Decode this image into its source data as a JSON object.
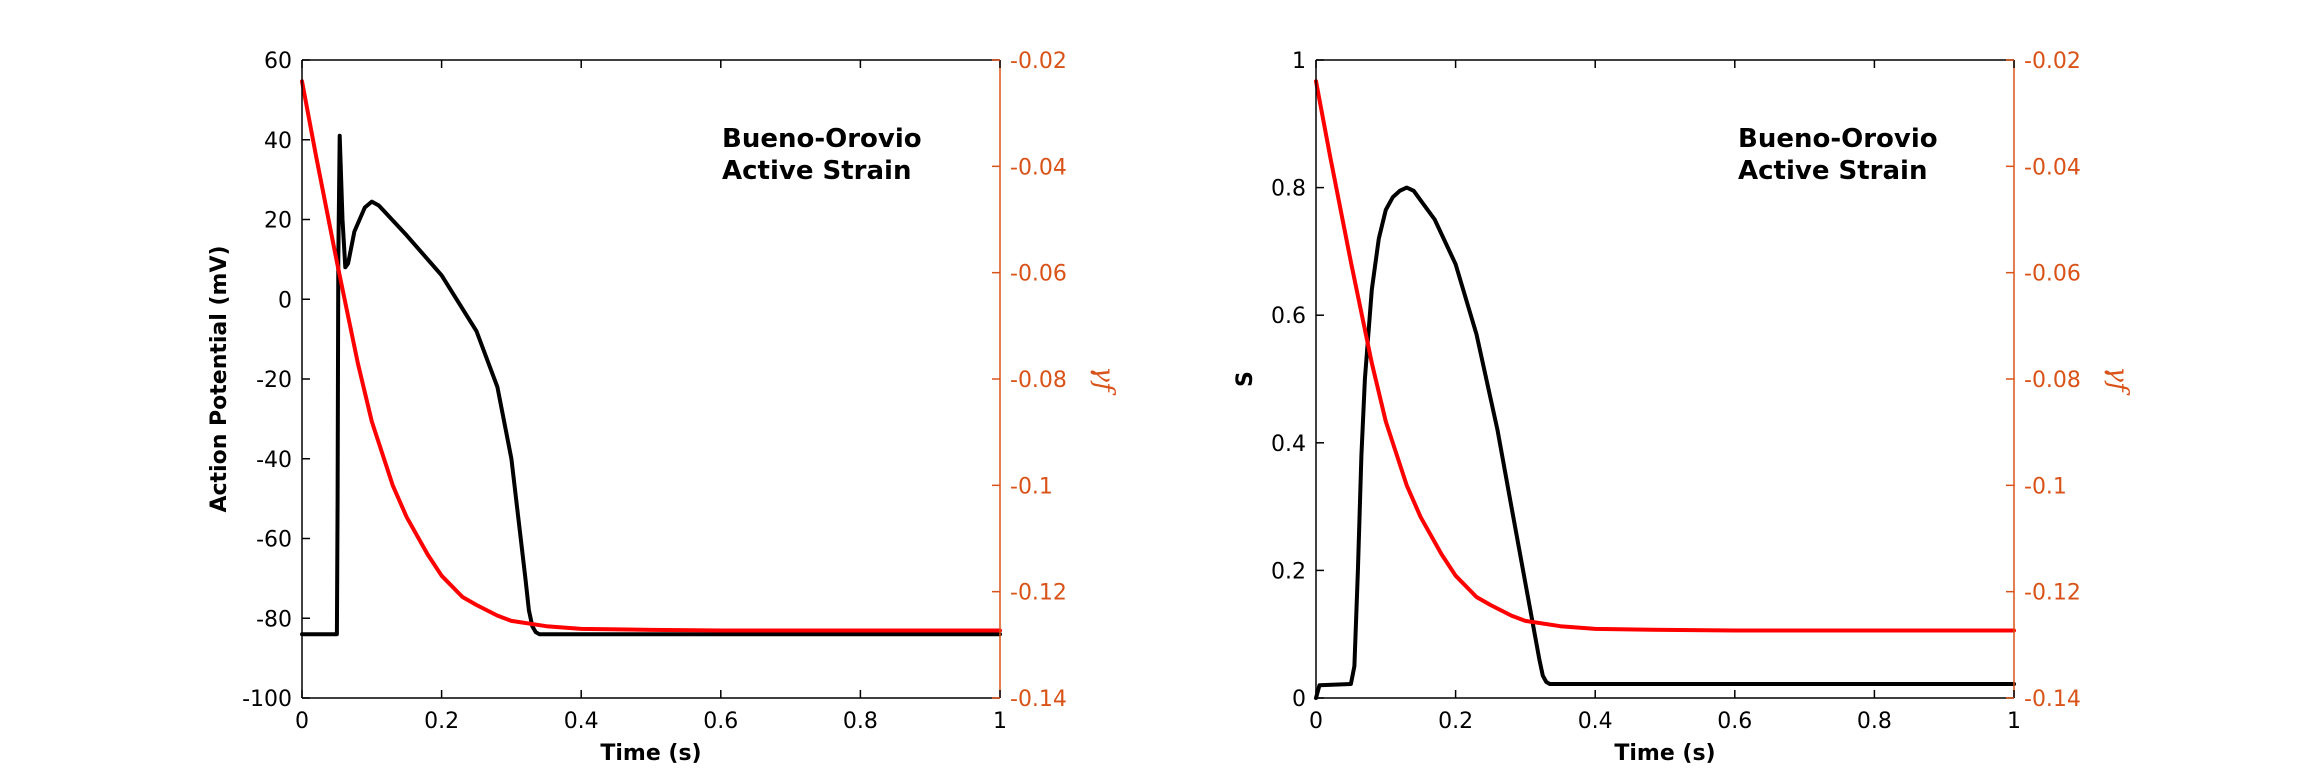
{
  "chart_data": [
    {
      "type": "line",
      "title": "",
      "annotation": [
        "Bueno-Orovio",
        "Active Strain"
      ],
      "xlabel": "Time (s)",
      "ylabel": "Action Potential (mV)",
      "y2label": "γf",
      "xlim": [
        0,
        1
      ],
      "ylim": [
        -100,
        60
      ],
      "y2lim": [
        -0.14,
        -0.02
      ],
      "xticks": [
        0,
        0.2,
        0.4,
        0.6,
        0.8,
        1
      ],
      "xtick_labels": [
        "0",
        "0.2",
        "0.4",
        "0.6",
        "0.8",
        "1"
      ],
      "yticks": [
        -100,
        -80,
        -60,
        -40,
        -20,
        0,
        20,
        40,
        60
      ],
      "ytick_labels": [
        "-100",
        "-80",
        "-60",
        "-40",
        "-20",
        "0",
        "20",
        "40",
        "60"
      ],
      "y2ticks": [
        -0.14,
        -0.12,
        -0.1,
        -0.08,
        -0.06,
        -0.04,
        -0.02
      ],
      "y2tick_labels": [
        "-0.14",
        "-0.12",
        "-0.1",
        "-0.08",
        "-0.06",
        "-0.04",
        "-0.02"
      ],
      "grid": false,
      "series": [
        {
          "axis": "left",
          "color": "#000000",
          "x": [
            0,
            0.05,
            0.051,
            0.052,
            0.054,
            0.058,
            0.062,
            0.066,
            0.075,
            0.09,
            0.1,
            0.11,
            0.15,
            0.2,
            0.25,
            0.28,
            0.3,
            0.31,
            0.32,
            0.325,
            0.33,
            0.335,
            0.34,
            0.4,
            0.6,
            0.8,
            1.0
          ],
          "y": [
            -84,
            -84,
            -50,
            10,
            41,
            20,
            8,
            9,
            17,
            23,
            24.5,
            23.5,
            16,
            6,
            -8,
            -22,
            -40,
            -55,
            -70,
            -78,
            -82,
            -83.5,
            -84,
            -84,
            -84,
            -84,
            -84
          ]
        },
        {
          "axis": "right",
          "color": "#ff0000",
          "x": [
            0,
            0.02,
            0.05,
            0.08,
            0.1,
            0.13,
            0.15,
            0.18,
            0.2,
            0.23,
            0.25,
            0.28,
            0.3,
            0.35,
            0.4,
            0.5,
            0.6,
            0.8,
            1.0
          ],
          "y": [
            -0.024,
            -0.038,
            -0.058,
            -0.077,
            -0.088,
            -0.1,
            -0.106,
            -0.113,
            -0.117,
            -0.121,
            -0.1225,
            -0.1245,
            -0.1255,
            -0.1265,
            -0.127,
            -0.1272,
            -0.1273,
            -0.1273,
            -0.1273
          ]
        }
      ]
    },
    {
      "type": "line",
      "title": "",
      "annotation": [
        "Bueno-Orovio",
        "Active Strain"
      ],
      "xlabel": "Time (s)",
      "ylabel": "S",
      "y2label": "γf",
      "xlim": [
        0,
        1
      ],
      "ylim": [
        0,
        1
      ],
      "y2lim": [
        -0.14,
        -0.02
      ],
      "xticks": [
        0,
        0.2,
        0.4,
        0.6,
        0.8,
        1
      ],
      "xtick_labels": [
        "0",
        "0.2",
        "0.4",
        "0.6",
        "0.8",
        "1"
      ],
      "yticks": [
        0,
        0.2,
        0.4,
        0.6,
        0.8,
        1
      ],
      "ytick_labels": [
        "0",
        "0.2",
        "0.4",
        "0.6",
        "0.8",
        "1"
      ],
      "y2ticks": [
        -0.14,
        -0.12,
        -0.1,
        -0.08,
        -0.06,
        -0.04,
        -0.02
      ],
      "y2tick_labels": [
        "-0.14",
        "-0.12",
        "-0.1",
        "-0.08",
        "-0.06",
        "-0.04",
        "-0.02"
      ],
      "grid": false,
      "series": [
        {
          "axis": "left",
          "color": "#000000",
          "x": [
            0,
            0.005,
            0.05,
            0.055,
            0.06,
            0.065,
            0.07,
            0.08,
            0.09,
            0.1,
            0.11,
            0.12,
            0.13,
            0.14,
            0.15,
            0.17,
            0.2,
            0.23,
            0.26,
            0.28,
            0.3,
            0.31,
            0.32,
            0.325,
            0.33,
            0.335,
            0.34,
            0.4,
            0.6,
            0.8,
            1.0
          ],
          "y": [
            0.0,
            0.02,
            0.022,
            0.05,
            0.2,
            0.38,
            0.5,
            0.64,
            0.72,
            0.765,
            0.785,
            0.795,
            0.8,
            0.795,
            0.78,
            0.75,
            0.68,
            0.57,
            0.42,
            0.3,
            0.18,
            0.12,
            0.06,
            0.035,
            0.025,
            0.022,
            0.022,
            0.022,
            0.022,
            0.022,
            0.022
          ]
        },
        {
          "axis": "right",
          "color": "#ff0000",
          "x": [
            0,
            0.02,
            0.05,
            0.08,
            0.1,
            0.13,
            0.15,
            0.18,
            0.2,
            0.23,
            0.25,
            0.28,
            0.3,
            0.35,
            0.4,
            0.5,
            0.6,
            0.8,
            1.0
          ],
          "y": [
            -0.024,
            -0.038,
            -0.058,
            -0.077,
            -0.088,
            -0.1,
            -0.106,
            -0.113,
            -0.117,
            -0.121,
            -0.1225,
            -0.1245,
            -0.1255,
            -0.1265,
            -0.127,
            -0.1272,
            -0.1273,
            -0.1273,
            -0.1273
          ]
        }
      ]
    }
  ],
  "colors": {
    "left_axis": "#000000",
    "right_axis": "#d95319",
    "left_series": "#000000",
    "right_series": "#ff0000"
  }
}
